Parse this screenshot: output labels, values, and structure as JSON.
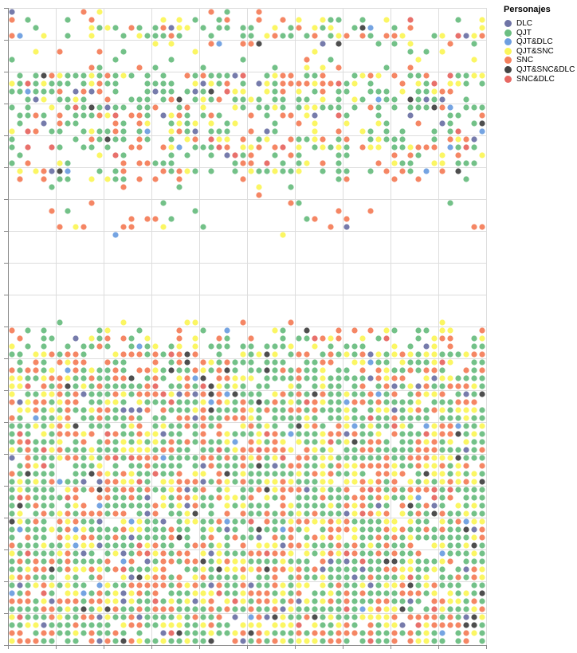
{
  "chart_data": {
    "type": "scatter",
    "title": "",
    "xlabel": "",
    "ylabel": "",
    "x_tick_labels": "none",
    "y_tick_labels": "none",
    "grid": true,
    "legend_placement": "top-right",
    "legend": {
      "title": "Personajes",
      "items": [
        {
          "label": "DLC",
          "color": "#6f74a6"
        },
        {
          "label": "QJT",
          "color": "#6cbe82"
        },
        {
          "label": "QJT&DLC",
          "color": "#6e9fe0"
        },
        {
          "label": "QJT&SNC",
          "color": "#fbf65b"
        },
        {
          "label": "SNC",
          "color": "#f47f5c"
        },
        {
          "label": "QJT&SNC&DLC",
          "color": "#444444"
        },
        {
          "label": "SNC&DLC",
          "color": "#e76863"
        }
      ]
    },
    "x_grid_count": 10,
    "y_grid_count": 20,
    "grid_rows": 80,
    "grid_cols": 60,
    "category_order": [
      "DLC",
      "QJT",
      "QJT&DLC",
      "QJT&SNC",
      "SNC",
      "QJT&SNC&DLC",
      "SNC&DLC"
    ],
    "row_density": [
      0.1,
      0.38,
      0.42,
      0.46,
      0.2,
      0.18,
      0.14,
      0.22,
      0.7,
      0.72,
      0.68,
      0.66,
      0.6,
      0.62,
      0.5,
      0.48,
      0.54,
      0.58,
      0.42,
      0.3,
      0.4,
      0.36,
      0.1,
      0.02,
      0.06,
      0.06,
      0.1,
      0.14,
      0.04,
      0.0,
      0.0,
      0.0,
      0.0,
      0.0,
      0.0,
      0.0,
      0.0,
      0.0,
      0.0,
      0.14,
      0.34,
      0.46,
      0.6,
      0.72,
      0.74,
      0.8,
      0.86,
      0.88,
      0.9,
      0.94,
      0.92,
      0.9,
      0.9,
      0.92,
      0.9,
      0.92,
      0.9,
      0.92,
      0.86,
      0.9,
      0.92,
      0.9,
      0.88,
      0.92,
      0.92,
      0.9,
      0.9,
      0.92,
      0.9,
      0.9,
      0.92,
      0.9,
      0.92,
      0.9,
      0.92,
      0.92,
      0.9,
      0.92,
      0.92,
      0.9
    ],
    "category_mix": [
      {
        "rows": [
          0,
          22
        ],
        "weights": [
          0.05,
          0.48,
          0.02,
          0.18,
          0.22,
          0.02,
          0.03
        ]
      },
      {
        "rows": [
          23,
          38
        ],
        "weights": [
          0.01,
          0.3,
          0.01,
          0.14,
          0.48,
          0.01,
          0.05
        ]
      },
      {
        "rows": [
          39,
          79
        ],
        "weights": [
          0.04,
          0.44,
          0.02,
          0.2,
          0.24,
          0.03,
          0.03
        ]
      }
    ]
  }
}
